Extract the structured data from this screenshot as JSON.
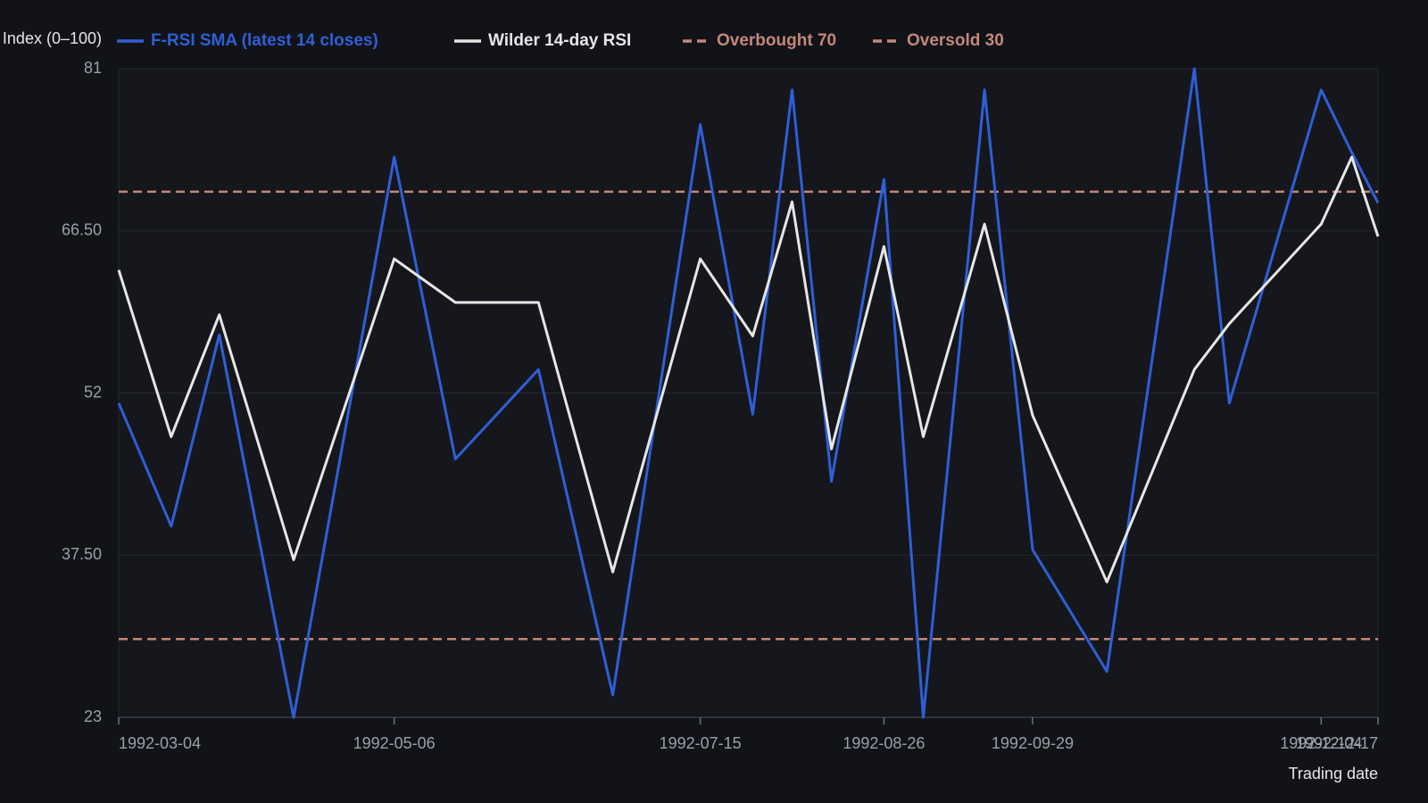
{
  "chart_data": {
    "type": "line",
    "y_label": "Index (0–100)",
    "x_label": "Trading date",
    "x": [
      "1992-03-04",
      "1992-03-16",
      "1992-03-27",
      "1992-04-13",
      "1992-05-06",
      "1992-05-20",
      "1992-06-08",
      "1992-06-25",
      "1992-07-15",
      "1992-07-27",
      "1992-08-05",
      "1992-08-14",
      "1992-08-26",
      "1992-09-04",
      "1992-09-18",
      "1992-09-29",
      "1992-10-16",
      "1992-11-05",
      "1992-11-13",
      "1992-12-04",
      "1992-12-11",
      "1992-12-17"
    ],
    "series": [
      {
        "name": "F-RSI SMA (latest 14 closes)",
        "color": "#2f5fd6",
        "values": [
          51.1,
          40.1,
          57.2,
          23,
          73.1,
          46.1,
          54.1,
          25.0,
          76.0,
          50.1,
          79.1,
          44.1,
          71.1,
          23,
          79.1,
          38.0,
          27.1,
          81,
          51.1,
          79.1,
          73.5,
          69.0
        ]
      },
      {
        "name": "Wilder 14-day RSI",
        "color": "#e6e6e6",
        "values": [
          63.0,
          48.1,
          59.0,
          37.1,
          64.0,
          60.1,
          60.1,
          36.0,
          64.0,
          57.1,
          69.1,
          47.0,
          65.1,
          48.1,
          67.1,
          50.0,
          35.1,
          54.1,
          58.2,
          67.1,
          73.1,
          66.0
        ]
      }
    ],
    "reference_lines": [
      {
        "name": "Overbought 70",
        "value": 70,
        "color": "#c4877a"
      },
      {
        "name": "Oversold 30",
        "value": 30,
        "color": "#c4877a"
      }
    ],
    "xlim": [
      "1992-03-04",
      "1992-12-17"
    ],
    "xticks": [
      "1992-03-04",
      "1992-05-06",
      "1992-07-15",
      "1992-08-26",
      "1992-09-29",
      "1992-12-04",
      "1992-12-17"
    ],
    "ylim": [
      23,
      81
    ],
    "yticks": [
      23,
      {
        "value": 37.5,
        "label": "37.50"
      },
      52,
      {
        "value": 66.5,
        "label": "66.50"
      },
      81
    ],
    "grid": true
  }
}
